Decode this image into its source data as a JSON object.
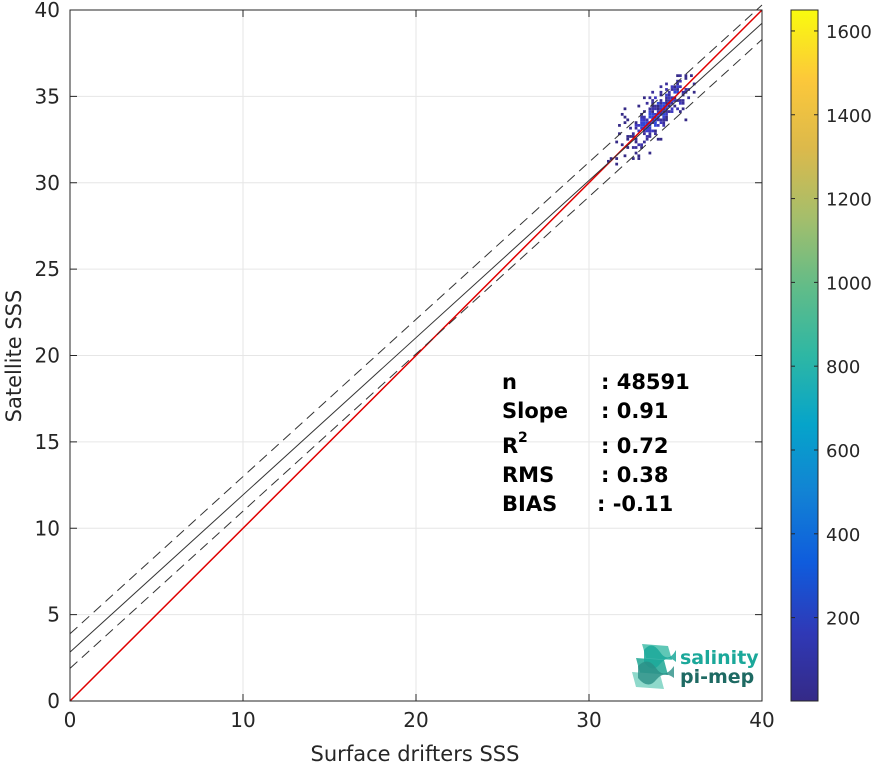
{
  "chart_data": {
    "type": "heatmap",
    "xlabel": "Surface drifters SSS",
    "ylabel": "Satellite SSS",
    "xlim": [
      0,
      40
    ],
    "ylim": [
      0,
      40
    ],
    "xticks": [
      0,
      10,
      20,
      30,
      40
    ],
    "yticks": [
      0,
      5,
      10,
      15,
      20,
      25,
      30,
      35,
      40
    ],
    "grid": true,
    "colormap": "parula",
    "colorbar": {
      "range": [
        1,
        1650
      ],
      "ticks": [
        200,
        400,
        600,
        800,
        1000,
        1200,
        1400,
        1600
      ]
    },
    "density_region": {
      "x_range": [
        28,
        36
      ],
      "y_range": [
        31,
        36.3
      ],
      "peak_at": [
        34,
        34
      ]
    },
    "lines": [
      {
        "name": "one-to-one",
        "type": "identity",
        "slope": 1,
        "intercept": 0,
        "color": "#e00000",
        "style": "solid"
      },
      {
        "name": "regression",
        "slope": 0.91,
        "intercept": 2.83,
        "color": "#333333",
        "style": "solid"
      },
      {
        "name": "upper-bound",
        "slope": 0.91,
        "intercept": 3.89,
        "color": "#333333",
        "style": "dashed"
      },
      {
        "name": "lower-bound",
        "slope": 0.91,
        "intercept": 1.89,
        "color": "#333333",
        "style": "dashed"
      }
    ],
    "stats": [
      {
        "label": "n",
        "value": ": 48591"
      },
      {
        "label": "Slope",
        "value": ": 0.91"
      },
      {
        "label": "R",
        "sup": "2",
        "value": ": 0.72"
      },
      {
        "label": "RMS",
        "value": ": 0.38"
      },
      {
        "label": "BIAS",
        "value": ": -0.11"
      }
    ]
  },
  "logo": {
    "line1": "salinity",
    "line2": "pi-mep"
  },
  "colors": {
    "identity_line": "#e00000",
    "fit_line": "#333333",
    "grid": "#e6e6e6",
    "axis": "#262626",
    "logo_teal": "#1ba89a",
    "logo_dark": "#1e6a63"
  }
}
